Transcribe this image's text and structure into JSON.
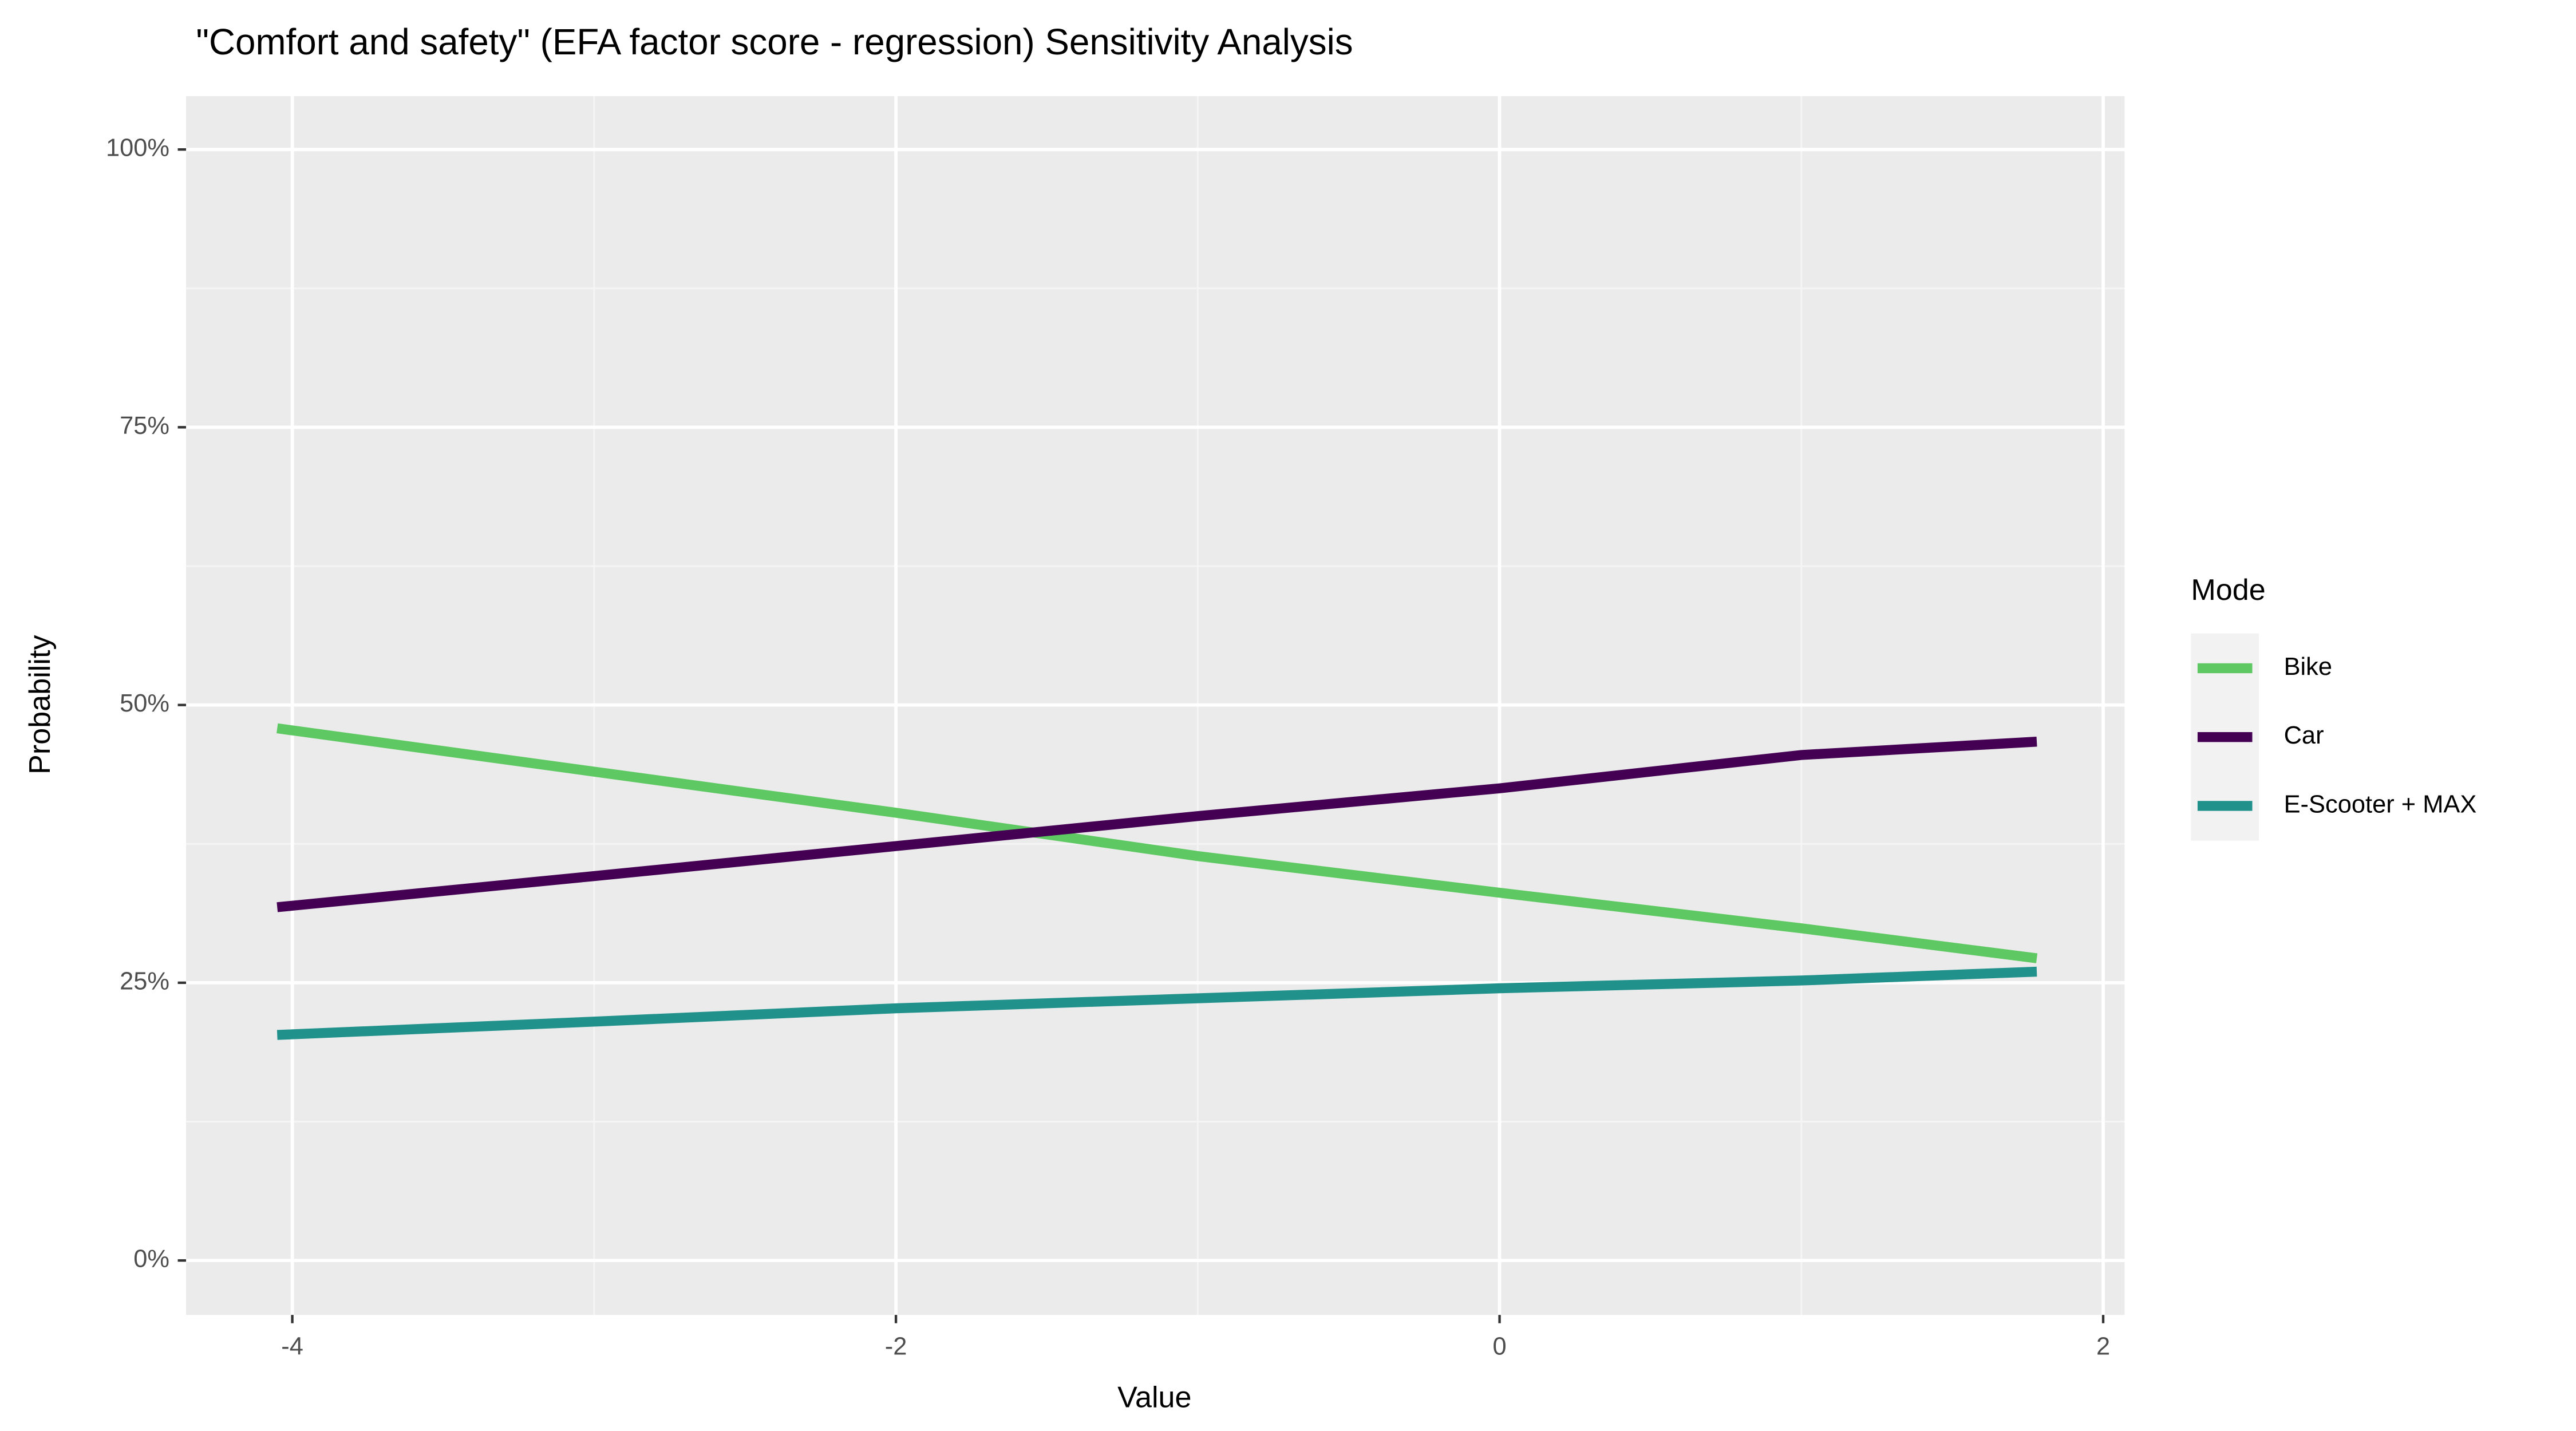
{
  "chart_data": {
    "type": "line",
    "title": "\"Comfort and safety\" (EFA factor score - regression) Sensitivity Analysis",
    "x_label": "Value",
    "y_label": "Probability",
    "legend_title": "Mode",
    "legend_position": "right",
    "grid": true,
    "x": [
      -4.05,
      -3,
      -2,
      -1,
      0,
      1,
      1.78
    ],
    "series": [
      {
        "name": "Bike",
        "color": "#5ec962",
        "values": [
          47.9,
          44.0,
          40.3,
          36.4,
          33.1,
          29.9,
          27.2
        ]
      },
      {
        "name": "Car",
        "color": "#440154",
        "values": [
          31.8,
          34.6,
          37.3,
          40.0,
          42.5,
          45.5,
          46.7
        ]
      },
      {
        "name": "E-Scooter + MAX",
        "color": "#21918c",
        "values": [
          20.3,
          21.5,
          22.7,
          23.6,
          24.5,
          25.2,
          26.0
        ]
      }
    ],
    "xlim": [
      -4.352,
      2.071
    ],
    "xticks": [
      -4,
      -2,
      0,
      2
    ],
    "x_minor_grid": [
      -3,
      -1,
      1
    ],
    "ylim": [
      -4.9,
      104.8
    ],
    "yticks": [
      {
        "value": 0,
        "label": "0%"
      },
      {
        "value": 25,
        "label": "25%"
      },
      {
        "value": 50,
        "label": "50%"
      },
      {
        "value": 75,
        "label": "75%"
      },
      {
        "value": 100,
        "label": "100%"
      }
    ],
    "y_minor_grid": [
      12.5,
      37.5,
      62.5,
      87.5
    ]
  }
}
